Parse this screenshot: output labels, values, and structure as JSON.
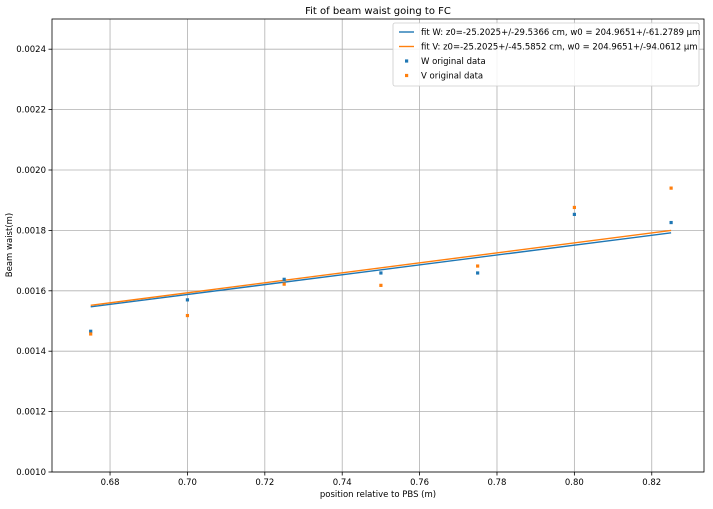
{
  "chart_data": {
    "type": "scatter",
    "title": "Fit of beam waist going to FC",
    "xlabel": "position relative to PBS (m)",
    "ylabel": "Beam waist(m)",
    "xlim": [
      0.665,
      0.8335
    ],
    "ylim": [
      0.001,
      0.0025
    ],
    "xticks": [
      0.68,
      0.7,
      0.72,
      0.74,
      0.76,
      0.78,
      0.8,
      0.82
    ],
    "xtick_labels": [
      "0.68",
      "0.70",
      "0.72",
      "0.74",
      "0.76",
      "0.78",
      "0.80",
      "0.82"
    ],
    "yticks": [
      0.001,
      0.0012,
      0.0014,
      0.0016,
      0.0018,
      0.002,
      0.0022,
      0.0024
    ],
    "ytick_labels": [
      "0.0010",
      "0.0012",
      "0.0014",
      "0.0016",
      "0.0018",
      "0.0020",
      "0.0022",
      "0.0024"
    ],
    "grid": true,
    "legend_position": "top-right",
    "series": [
      {
        "name": "fit W: z0=-25.2025+/-29.5366 cm, w0 = 204.9651+/-61.2789 μm",
        "kind": "line",
        "color": "#1f77b4",
        "x": [
          0.675,
          0.825
        ],
        "y": [
          0.001547,
          0.001792
        ]
      },
      {
        "name": "fit V: z0=-25.2025+/-45.5852 cm, w0 = 204.9651+/-94.0612 μm",
        "kind": "line",
        "color": "#ff7f0e",
        "x": [
          0.675,
          0.825
        ],
        "y": [
          0.001552,
          0.0018
        ]
      },
      {
        "name": "W original data",
        "kind": "scatter",
        "color": "#1f77b4",
        "x": [
          0.675,
          0.7,
          0.725,
          0.75,
          0.775,
          0.8,
          0.825
        ],
        "y": [
          0.001466,
          0.00157,
          0.001638,
          0.001659,
          0.001659,
          0.001853,
          0.001826
        ]
      },
      {
        "name": "V original data",
        "kind": "scatter",
        "color": "#ff7f0e",
        "x": [
          0.675,
          0.7,
          0.725,
          0.75,
          0.775,
          0.8,
          0.825
        ],
        "y": [
          0.001457,
          0.001518,
          0.001622,
          0.001618,
          0.001682,
          0.001876,
          0.00194
        ]
      }
    ]
  }
}
